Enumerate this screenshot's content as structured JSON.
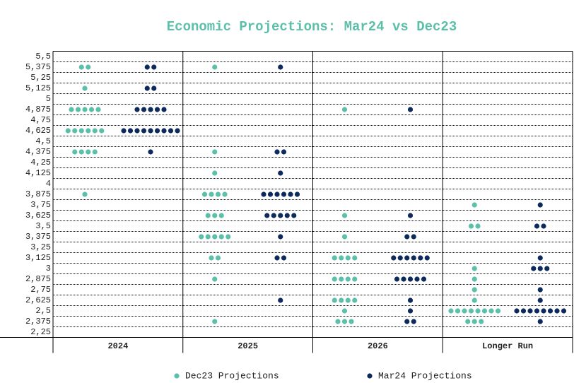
{
  "chart_data": {
    "type": "dot",
    "title": "Economic Projections: Mar24 vs Dec23",
    "categories": [
      "2024",
      "2025",
      "2026",
      "Longer Run"
    ],
    "ylim": [
      2.1875,
      5.5625
    ],
    "yticks": [
      {
        "value": 5.5,
        "label": "5,5"
      },
      {
        "value": 5.375,
        "label": "5,375"
      },
      {
        "value": 5.25,
        "label": "5,25"
      },
      {
        "value": 5.125,
        "label": "5,125"
      },
      5,
      {
        "value": 4.875,
        "label": "4,875"
      },
      {
        "value": 4.75,
        "label": "4,75"
      },
      {
        "value": 4.625,
        "label": "4,625"
      },
      {
        "value": 4.5,
        "label": "4,5"
      },
      {
        "value": 4.375,
        "label": "4,375"
      },
      {
        "value": 4.25,
        "label": "4,25"
      },
      {
        "value": 4.125,
        "label": "4,125"
      },
      4,
      {
        "value": 3.875,
        "label": "3,875"
      },
      {
        "value": 3.75,
        "label": "3,75"
      },
      {
        "value": 3.625,
        "label": "3,625"
      },
      {
        "value": 3.5,
        "label": "3,5"
      },
      {
        "value": 3.375,
        "label": "3,375"
      },
      {
        "value": 3.25,
        "label": "3,25"
      },
      {
        "value": 3.125,
        "label": "3,125"
      },
      3,
      {
        "value": 2.875,
        "label": "2,875"
      },
      {
        "value": 2.75,
        "label": "2,75"
      },
      {
        "value": 2.625,
        "label": "2,625"
      },
      {
        "value": 2.5,
        "label": "2,5"
      },
      {
        "value": 2.375,
        "label": "2,375"
      },
      {
        "value": 2.25,
        "label": "2,25"
      }
    ],
    "grid": true,
    "legend": "bottom",
    "series": [
      {
        "name": "Dec23 Projections",
        "color": "#5bbfaa",
        "values": [
          [
            {
              "rate": 5.375,
              "count": 2
            },
            {
              "rate": 5.125,
              "count": 1
            },
            {
              "rate": 4.875,
              "count": 5
            },
            {
              "rate": 4.625,
              "count": 6
            },
            {
              "rate": 4.375,
              "count": 4
            },
            {
              "rate": 3.875,
              "count": 1
            }
          ],
          [
            {
              "rate": 5.375,
              "count": 1
            },
            {
              "rate": 4.375,
              "count": 1
            },
            {
              "rate": 4.125,
              "count": 1
            },
            {
              "rate": 3.875,
              "count": 4
            },
            {
              "rate": 3.625,
              "count": 3
            },
            {
              "rate": 3.375,
              "count": 5
            },
            {
              "rate": 3.125,
              "count": 2
            },
            {
              "rate": 2.875,
              "count": 1
            },
            {
              "rate": 2.375,
              "count": 1
            }
          ],
          [
            {
              "rate": 4.875,
              "count": 1
            },
            {
              "rate": 3.625,
              "count": 1
            },
            {
              "rate": 3.375,
              "count": 1
            },
            {
              "rate": 3.125,
              "count": 4
            },
            {
              "rate": 2.875,
              "count": 4
            },
            {
              "rate": 2.625,
              "count": 4
            },
            {
              "rate": 2.5,
              "count": 1
            },
            {
              "rate": 2.375,
              "count": 3
            }
          ],
          [
            {
              "rate": 3.75,
              "count": 1
            },
            {
              "rate": 3.5,
              "count": 2
            },
            {
              "rate": 3,
              "count": 1
            },
            {
              "rate": 2.875,
              "count": 1
            },
            {
              "rate": 2.75,
              "count": 1
            },
            {
              "rate": 2.625,
              "count": 1
            },
            {
              "rate": 2.5,
              "count": 8
            },
            {
              "rate": 2.375,
              "count": 3
            }
          ]
        ]
      },
      {
        "name": "Mar24 Projections",
        "color": "#0d2a5c",
        "values": [
          [
            {
              "rate": 5.375,
              "count": 2
            },
            {
              "rate": 5.125,
              "count": 2
            },
            {
              "rate": 4.875,
              "count": 5
            },
            {
              "rate": 4.625,
              "count": 9
            },
            {
              "rate": 4.375,
              "count": 1
            }
          ],
          [
            {
              "rate": 5.375,
              "count": 1
            },
            {
              "rate": 4.375,
              "count": 2
            },
            {
              "rate": 4.125,
              "count": 1
            },
            {
              "rate": 3.875,
              "count": 6
            },
            {
              "rate": 3.625,
              "count": 5
            },
            {
              "rate": 3.375,
              "count": 1
            },
            {
              "rate": 3.125,
              "count": 2
            },
            {
              "rate": 2.625,
              "count": 1
            }
          ],
          [
            {
              "rate": 4.875,
              "count": 1
            },
            {
              "rate": 3.625,
              "count": 1
            },
            {
              "rate": 3.375,
              "count": 2
            },
            {
              "rate": 3.125,
              "count": 6
            },
            {
              "rate": 2.875,
              "count": 5
            },
            {
              "rate": 2.625,
              "count": 1
            },
            {
              "rate": 2.5,
              "count": 1
            },
            {
              "rate": 2.375,
              "count": 2
            }
          ],
          [
            {
              "rate": 3.75,
              "count": 1
            },
            {
              "rate": 3.5,
              "count": 2
            },
            {
              "rate": 3.125,
              "count": 1
            },
            {
              "rate": 3,
              "count": 3
            },
            {
              "rate": 2.75,
              "count": 1
            },
            {
              "rate": 2.625,
              "count": 1
            },
            {
              "rate": 2.5,
              "count": 8
            },
            {
              "rate": 2.375,
              "count": 1
            }
          ]
        ]
      }
    ]
  }
}
